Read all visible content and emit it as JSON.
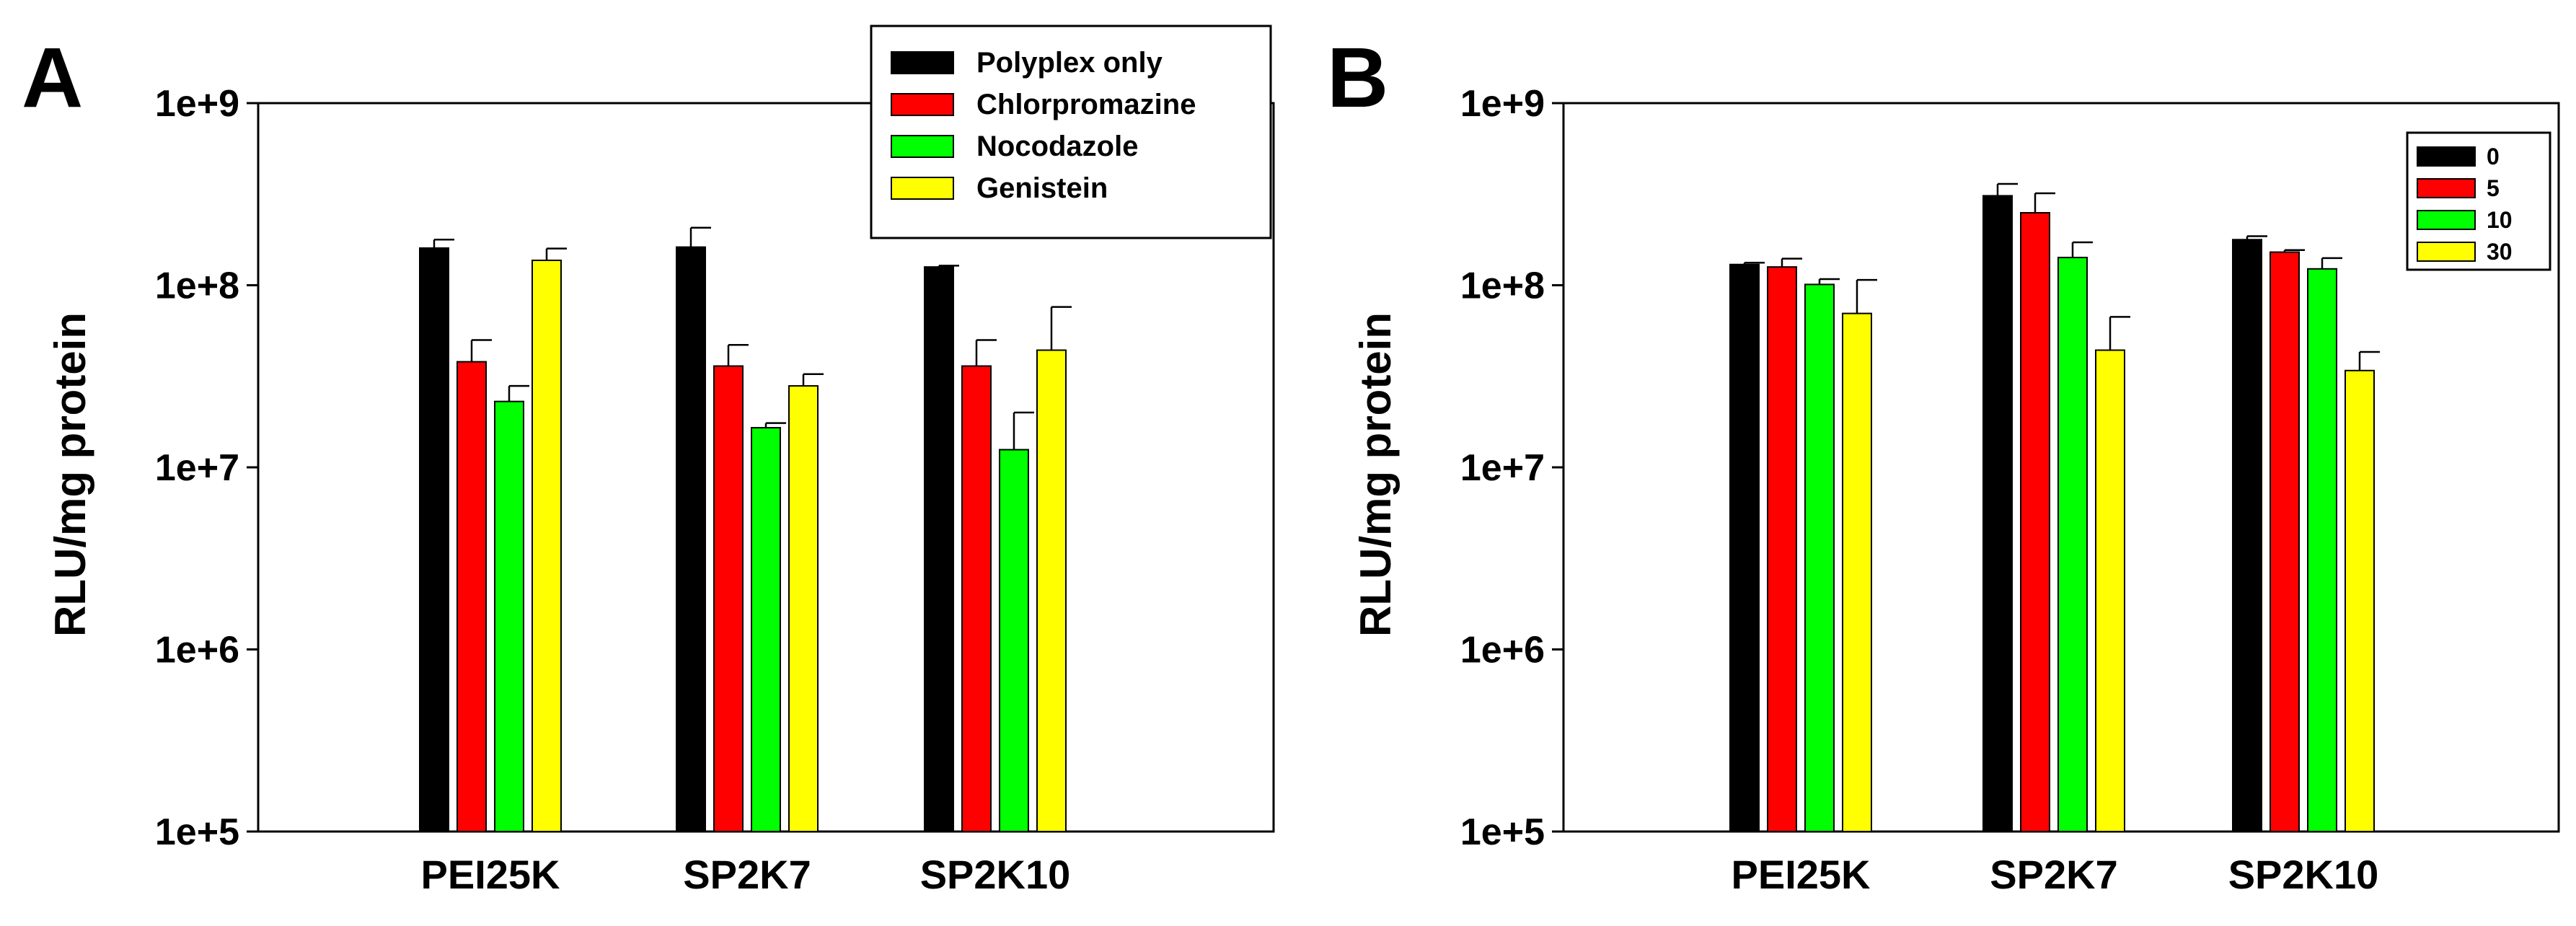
{
  "chart_data": [
    {
      "panel": "A",
      "type": "bar",
      "yscale": "log",
      "ylabel": "RLU/mg protein",
      "ylim": [
        100000,
        1000000000
      ],
      "yticks": [
        "1e+5",
        "1e+6",
        "1e+7",
        "1e+8",
        "1e+9"
      ],
      "categories": [
        "PEI25K",
        "SP2K7",
        "SP2K10"
      ],
      "legend_position": "top-right",
      "series": [
        {
          "name": "Polyplex only",
          "color": "#000000",
          "values": [
            160000000,
            162000000,
            126000000
          ],
          "errors": [
            18000000,
            45000000,
            2000000
          ]
        },
        {
          "name": "Chlorpromazine",
          "color": "#ff0000",
          "values": [
            38000000,
            36000000,
            36000000
          ],
          "errors": [
            12000000,
            11000000,
            14000000
          ]
        },
        {
          "name": "Nocodazole",
          "color": "#00ff00",
          "values": [
            23000000,
            16500000,
            12500000
          ],
          "errors": [
            5000000,
            1000000,
            7500000
          ]
        },
        {
          "name": "Genistein",
          "color": "#ffff00",
          "values": [
            137000000,
            28000000,
            44000000
          ],
          "errors": [
            22000000,
            4500000,
            32000000
          ]
        }
      ]
    },
    {
      "panel": "B",
      "type": "bar",
      "yscale": "log",
      "ylabel": "RLU/mg protein",
      "ylim": [
        100000,
        1000000000
      ],
      "yticks": [
        "1e+5",
        "1e+6",
        "1e+7",
        "1e+8",
        "1e+9"
      ],
      "categories": [
        "PEI25K",
        "SP2K7",
        "SP2K10"
      ],
      "legend_position": "top-right",
      "series": [
        {
          "name": "0",
          "color": "#000000",
          "values": [
            130000000,
            310000000,
            178000000
          ],
          "errors": [
            3000000,
            50000000,
            8000000
          ]
        },
        {
          "name": "5",
          "color": "#ff0000",
          "values": [
            126000000,
            250000000,
            152000000
          ],
          "errors": [
            14000000,
            70000000,
            4000000
          ]
        },
        {
          "name": "10",
          "color": "#00ff00",
          "values": [
            101000000,
            142000000,
            123000000
          ],
          "errors": [
            7000000,
            30000000,
            18000000
          ]
        },
        {
          "name": "30",
          "color": "#ffff00",
          "values": [
            70000000,
            44000000,
            34000000
          ],
          "errors": [
            37000000,
            23000000,
            9000000
          ]
        }
      ]
    }
  ]
}
